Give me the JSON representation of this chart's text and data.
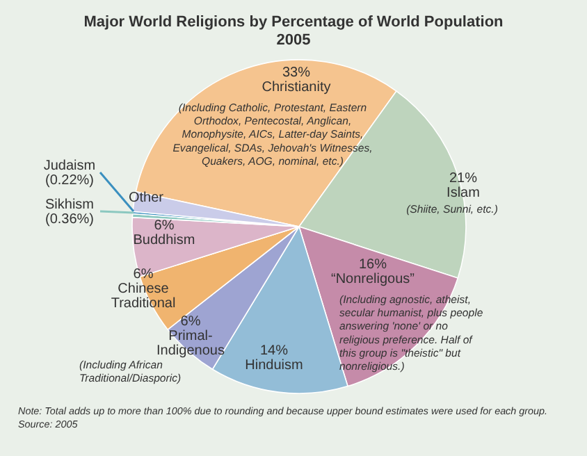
{
  "chart_data": {
    "type": "pie",
    "title": "Major World Religions by Percentage of World Population",
    "subtitle": "2005",
    "categories": [
      "Christianity",
      "Islam",
      "“Nonreligous”",
      "Hinduism",
      "Primal-Indigenous",
      "Chinese Traditional",
      "Buddhism",
      "Sikhism",
      "Judaism",
      "Other"
    ],
    "values": [
      33,
      21,
      16,
      14,
      6,
      6,
      6,
      0.36,
      0.22,
      2
    ],
    "value_labels": [
      "33%",
      "21%",
      "16%",
      "14%",
      "6%",
      "6%",
      "6%",
      "(0.36%)",
      "(0.22%)",
      null
    ],
    "colors": [
      "#f5c48f",
      "#bed4bd",
      "#c58ba9",
      "#93bdd7",
      "#9ea4d2",
      "#f0b46f",
      "#dcb5c9",
      "#8cc8c0",
      "#3a8fbf",
      "#cacce9"
    ],
    "annotations": [
      {
        "text": "(Including Catholic, Protestant, Eastern Orthodox, Pentecostal, Anglican, Monophysite, AICs, Latter-day Saints, Evangelical, SDAs, Jehovah's Witnesses, Quakers, AOG, nominal, etc.)",
        "x": "Christianity"
      },
      {
        "text": "(Shiite, Sunni, etc.)",
        "x": "Islam"
      },
      {
        "text": "(Including agnostic, atheist, secular humanist, plus people answering 'none' or no religious preference. Half of this group is \"theistic\" but nonreligious.)",
        "x": "“Nonreligous”"
      },
      {
        "text": "(Including African Traditional/Diasporic)",
        "x": "Primal-Indigenous"
      },
      "Note: Total adds up to more than 100% due to rounding and because upper bound estimates were used for each group.",
      "Source: 2005"
    ]
  }
}
